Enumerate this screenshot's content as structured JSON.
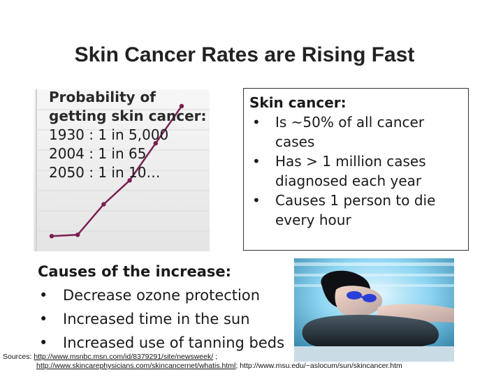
{
  "slide": {
    "title": "Skin Cancer Rates are Rising Fast"
  },
  "probability": {
    "heading_line1": "Probability of",
    "heading_line2": "getting skin cancer:",
    "rows": [
      "1930 : 1 in 5,000",
      "2004 : 1 in 65",
      "2050 : 1 in 10…"
    ]
  },
  "skin_box": {
    "heading": "Skin cancer:",
    "bullets": [
      {
        "line1": "Is ~50% of all cancer",
        "line2": "cases"
      },
      {
        "line1": "Has > 1 million cases",
        "line2": "diagnosed each year"
      },
      {
        "line1": "Causes 1 person to die",
        "line2": "every hour"
      }
    ]
  },
  "causes": {
    "heading": "Causes of the increase:",
    "bullets": [
      "Decrease ozone protection",
      "Increased time in the sun",
      "Increased use of tanning beds"
    ]
  },
  "bullet_symbol": "•",
  "sources": {
    "label": "Sources:",
    "link1": "http://www.msnbc.msn.com/id/8379291/site/newsweek/",
    "sep1": " ;",
    "link2": "http://www.skincarephysicians.com/skincancernet/whatis.html",
    "sep2": "; ",
    "text3": "http://www.msu.edu/~aslocum/sun/skincancer.htm"
  },
  "colors": {
    "chart_line": "#7a1f52",
    "chart_background": "#e9e9ea",
    "tanning_glow": "#8fd6f2",
    "goggles": "#2a3fd8"
  },
  "chart_data": {
    "type": "line",
    "title": "",
    "xlabel": "",
    "ylabel": "",
    "x": [
      1,
      2,
      3,
      4,
      5,
      6
    ],
    "values": [
      2,
      3,
      26,
      44,
      72,
      100
    ],
    "ylim": [
      0,
      100
    ],
    "grid": true
  }
}
